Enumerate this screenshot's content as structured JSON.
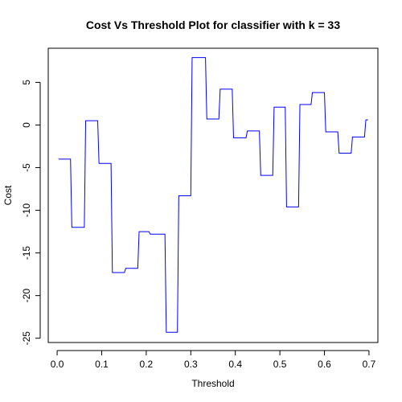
{
  "chart_data": {
    "type": "line",
    "title": "Cost Vs Threshold Plot for classifier with k = 33",
    "xlabel": "Threshold",
    "ylabel": "Cost",
    "xlim": [
      -0.02,
      0.72
    ],
    "ylim": [
      -25.5,
      9.0
    ],
    "grid": false,
    "legend": "none",
    "line_color": "#0000ff",
    "x_ticks": [
      0.0,
      0.1,
      0.2,
      0.3,
      0.4,
      0.5,
      0.6,
      0.7
    ],
    "x_tick_labels": [
      "0.0",
      "0.1",
      "0.2",
      "0.3",
      "0.4",
      "0.5",
      "0.6",
      "0.7"
    ],
    "y_ticks": [
      5,
      0,
      -5,
      -10,
      -15,
      -20,
      -25
    ],
    "y_tick_labels": [
      "5",
      "0",
      "-5",
      "-10",
      "-15",
      "-20",
      "-25"
    ],
    "series": [
      {
        "x": [
          0.003,
          0.03,
          0.033,
          0.061,
          0.064,
          0.091,
          0.094,
          0.121,
          0.124,
          0.151,
          0.154,
          0.181,
          0.184,
          0.206,
          0.209,
          0.242,
          0.245,
          0.27,
          0.273,
          0.3,
          0.303,
          0.333,
          0.336,
          0.363,
          0.366,
          0.393,
          0.396,
          0.424,
          0.427,
          0.454,
          0.457,
          0.484,
          0.487,
          0.512,
          0.515,
          0.542,
          0.545,
          0.57,
          0.573,
          0.6,
          0.603,
          0.63,
          0.633,
          0.66,
          0.663,
          0.69,
          0.693,
          0.698
        ],
        "y": [
          -4.0,
          -4.0,
          -12.0,
          -12.0,
          0.5,
          0.5,
          -4.5,
          -4.5,
          -17.3,
          -17.3,
          -16.8,
          -16.8,
          -12.5,
          -12.5,
          -12.8,
          -12.8,
          -24.3,
          -24.3,
          -8.3,
          -8.3,
          7.9,
          7.9,
          0.7,
          0.7,
          4.2,
          4.2,
          -1.5,
          -1.5,
          -0.7,
          -0.7,
          -5.9,
          -5.9,
          2.1,
          2.1,
          -9.6,
          -9.6,
          2.4,
          2.4,
          3.8,
          3.8,
          -0.8,
          -0.8,
          -3.3,
          -3.3,
          -1.4,
          -1.4,
          0.6,
          0.6
        ]
      }
    ]
  }
}
